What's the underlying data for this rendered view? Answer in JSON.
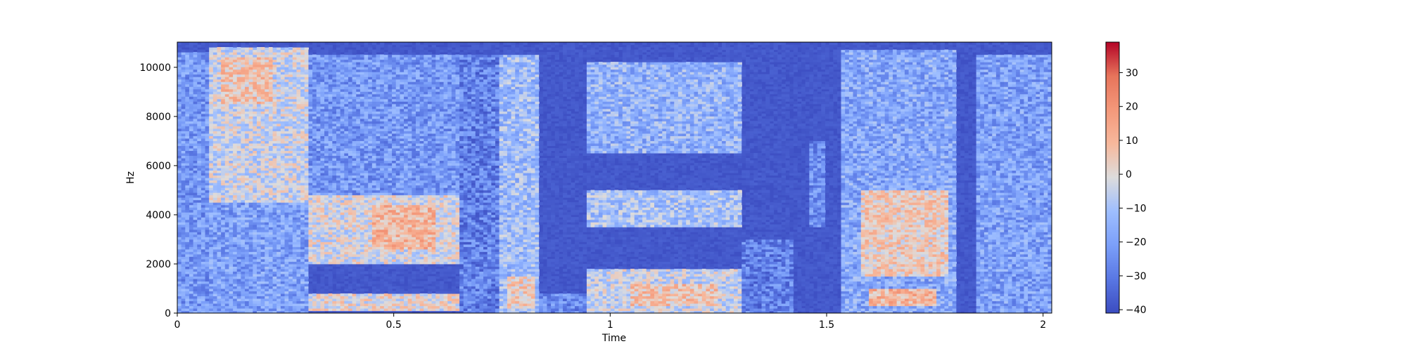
{
  "chart_data": {
    "type": "heatmap",
    "subtype": "spectrogram",
    "title": "",
    "xlabel": "Time",
    "ylabel": "Hz",
    "xlim": [
      0,
      2.02
    ],
    "ylim": [
      0,
      11025
    ],
    "x_ticks": [
      {
        "value": 0,
        "label": "0"
      },
      {
        "value": 0.5,
        "label": "0.5"
      },
      {
        "value": 1,
        "label": "1"
      },
      {
        "value": 1.5,
        "label": "1.5"
      },
      {
        "value": 2,
        "label": "2"
      }
    ],
    "y_ticks": [
      {
        "value": 0,
        "label": "0"
      },
      {
        "value": 2000,
        "label": "2000"
      },
      {
        "value": 4000,
        "label": "4000"
      },
      {
        "value": 6000,
        "label": "6000"
      },
      {
        "value": 8000,
        "label": "8000"
      },
      {
        "value": 10000,
        "label": "10000"
      }
    ],
    "colorbar": {
      "colormap": "coolwarm",
      "range": [
        -41,
        39
      ],
      "ticks": [
        {
          "value": -40,
          "label": "−40"
        },
        {
          "value": -30,
          "label": "−30"
        },
        {
          "value": -20,
          "label": "−20"
        },
        {
          "value": -10,
          "label": "−10"
        },
        {
          "value": 0,
          "label": "0"
        },
        {
          "value": 10,
          "label": "10"
        },
        {
          "value": 20,
          "label": "20"
        },
        {
          "value": 30,
          "label": "30"
        }
      ]
    },
    "background_level_db": -40,
    "energy_regions": [
      {
        "t0": 0.0,
        "t1": 0.07,
        "f0": 0,
        "f1": 10600,
        "db": -22
      },
      {
        "t0": 0.07,
        "t1": 0.3,
        "f0": 4500,
        "f1": 10800,
        "db": -4
      },
      {
        "t0": 0.1,
        "t1": 0.22,
        "f0": 8500,
        "f1": 10400,
        "db": 6
      },
      {
        "t0": 0.07,
        "t1": 0.3,
        "f0": 0,
        "f1": 4500,
        "db": -20
      },
      {
        "t0": 0.3,
        "t1": 0.65,
        "f0": 2000,
        "f1": 4800,
        "db": -2
      },
      {
        "t0": 0.45,
        "t1": 0.6,
        "f0": 2600,
        "f1": 4400,
        "db": 10
      },
      {
        "t0": 0.3,
        "t1": 0.65,
        "f0": 100,
        "f1": 800,
        "db": 0
      },
      {
        "t0": 0.3,
        "t1": 0.65,
        "f0": 4800,
        "f1": 10500,
        "db": -22
      },
      {
        "t0": 0.65,
        "t1": 0.74,
        "f0": 0,
        "f1": 10500,
        "db": -28
      },
      {
        "t0": 0.74,
        "t1": 0.84,
        "f0": 0,
        "f1": 10500,
        "db": -12
      },
      {
        "t0": 0.76,
        "t1": 0.83,
        "f0": 200,
        "f1": 1500,
        "db": 4
      },
      {
        "t0": 0.84,
        "t1": 0.95,
        "f0": 0,
        "f1": 800,
        "db": -25
      },
      {
        "t0": 0.95,
        "t1": 1.3,
        "f0": 6500,
        "f1": 10200,
        "db": -15
      },
      {
        "t0": 0.95,
        "t1": 1.3,
        "f0": 3500,
        "f1": 5000,
        "db": -10
      },
      {
        "t0": 0.95,
        "t1": 1.3,
        "f0": 0,
        "f1": 1800,
        "db": -5
      },
      {
        "t0": 1.05,
        "t1": 1.25,
        "f0": 300,
        "f1": 1200,
        "db": 6
      },
      {
        "t0": 1.3,
        "t1": 1.42,
        "f0": 0,
        "f1": 3000,
        "db": -28
      },
      {
        "t0": 1.46,
        "t1": 1.5,
        "f0": 3500,
        "f1": 7000,
        "db": -25
      },
      {
        "t0": 1.53,
        "t1": 1.8,
        "f0": 0,
        "f1": 10700,
        "db": -18
      },
      {
        "t0": 1.58,
        "t1": 1.78,
        "f0": 1500,
        "f1": 5000,
        "db": 4
      },
      {
        "t0": 1.6,
        "t1": 1.75,
        "f0": 300,
        "f1": 1000,
        "db": 10
      },
      {
        "t0": 1.85,
        "t1": 2.02,
        "f0": 0,
        "f1": 10500,
        "db": -20
      }
    ]
  }
}
